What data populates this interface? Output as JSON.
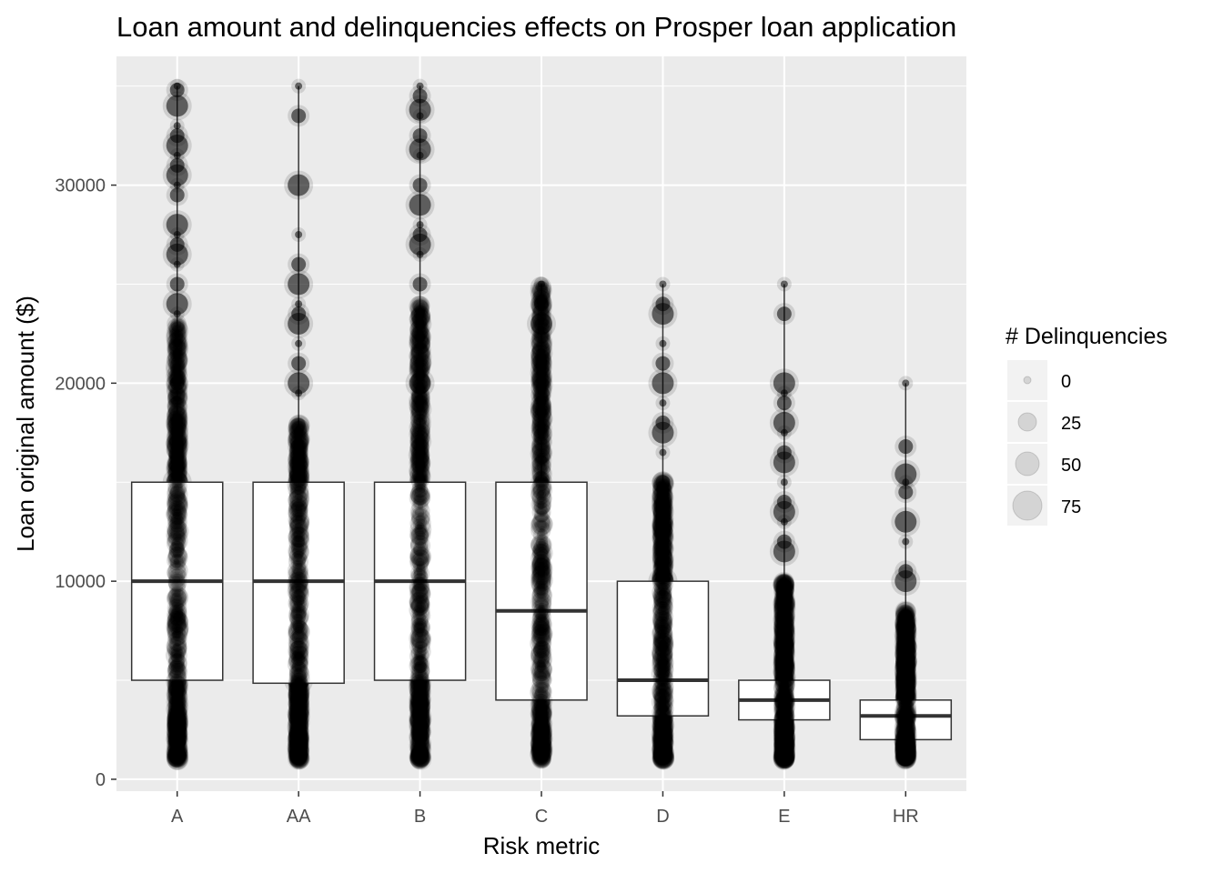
{
  "chart_data": {
    "type": "box",
    "title": "Loan amount and delinquencies effects on Prosper loan application",
    "xlabel": "Risk metric",
    "ylabel": "Loan original amount ($)",
    "categories": [
      "A",
      "AA",
      "B",
      "C",
      "D",
      "E",
      "HR"
    ],
    "ylim": [
      -600,
      36500
    ],
    "yticks": [
      0,
      10000,
      20000,
      30000
    ],
    "grid": true,
    "background": "#ebebeb",
    "point_color": "#000000",
    "box_fill": "#ffffff",
    "boxes": [
      {
        "category": "A",
        "q1": 5000,
        "median": 10000,
        "q3": 15000
      },
      {
        "category": "AA",
        "q1": 4850,
        "median": 10000,
        "q3": 15000
      },
      {
        "category": "B",
        "q1": 5000,
        "median": 10000,
        "q3": 15000
      },
      {
        "category": "C",
        "q1": 4000,
        "median": 8500,
        "q3": 15000
      },
      {
        "category": "D",
        "q1": 3200,
        "median": 5000,
        "q3": 10000
      },
      {
        "category": "E",
        "q1": 3000,
        "median": 4000,
        "q3": 5000
      },
      {
        "category": "HR",
        "q1": 2000,
        "median": 3200,
        "q3": 4000
      }
    ],
    "points": {
      "A": {
        "min": 1000,
        "dense_max": 23000,
        "highlights": [
          35000,
          34800,
          34000,
          33000,
          32500,
          32000,
          31500,
          31000,
          30500,
          30000,
          29500,
          28000,
          27500,
          27000,
          26500,
          26000,
          25000,
          24000,
          23500,
          20000,
          15000,
          10000
        ]
      },
      "AA": {
        "min": 1000,
        "dense_max": 18000,
        "highlights": [
          35000,
          33500,
          30000,
          27500,
          26000,
          25000,
          24000,
          23500,
          23000,
          22000,
          21000,
          20000,
          19500,
          15000,
          12000,
          10000,
          6000,
          5000
        ]
      },
      "B": {
        "min": 1000,
        "dense_max": 24000,
        "highlights": [
          35000,
          34500,
          33800,
          33500,
          32500,
          31800,
          31500,
          30000,
          29000,
          28000,
          27500,
          27000,
          26500,
          25000,
          20000,
          15000,
          10000
        ]
      },
      "C": {
        "min": 1000,
        "dense_max": 25000,
        "highlights": [
          25000,
          24000,
          23000,
          20000,
          15000,
          10000
        ]
      },
      "D": {
        "min": 1000,
        "dense_max": 15000,
        "highlights": [
          25000,
          24000,
          23500,
          22000,
          21000,
          20000,
          19000,
          18000,
          17500,
          16500,
          15000,
          10000
        ]
      },
      "E": {
        "min": 1000,
        "dense_max": 10000,
        "highlights": [
          25000,
          23500,
          20000,
          19500,
          19000,
          18000,
          17500,
          16500,
          16000,
          15000,
          14000,
          13500,
          13000,
          12000,
          11500,
          10000
        ]
      },
      "HR": {
        "min": 1000,
        "dense_max": 8500,
        "highlights": [
          20000,
          16800,
          15400,
          15000,
          14500,
          13000,
          12000,
          10500,
          10000
        ]
      }
    },
    "legend": {
      "title": "# Delinquencies",
      "position": "right",
      "entries": [
        {
          "label": "0",
          "size": 0
        },
        {
          "label": "25",
          "size": 25
        },
        {
          "label": "50",
          "size": 50
        },
        {
          "label": "75",
          "size": 75
        }
      ]
    }
  }
}
